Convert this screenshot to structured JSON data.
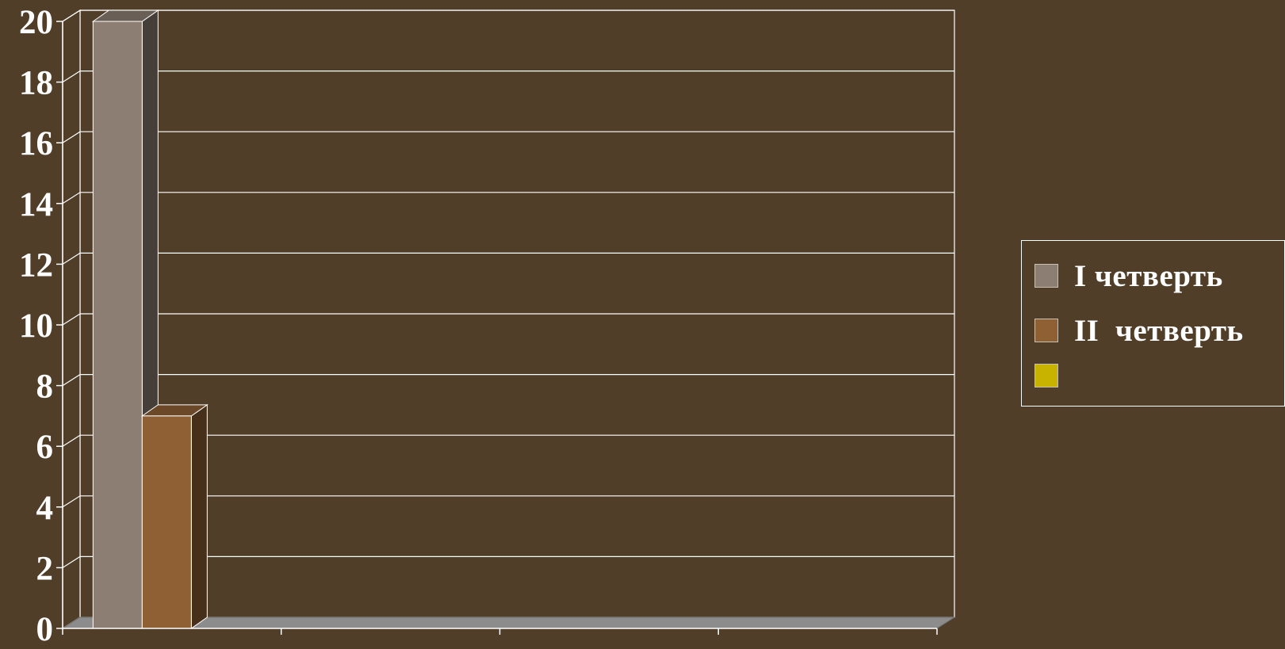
{
  "chart_data": {
    "type": "bar",
    "style": "3d-clustered-column",
    "title": "",
    "xlabel": "",
    "ylabel": "",
    "categories": [
      "",
      "",
      "",
      ""
    ],
    "series": [
      {
        "name": "I четверть",
        "values": [
          20,
          null,
          null,
          null
        ],
        "color": "#8c7e72"
      },
      {
        "name": "II  четверть",
        "values": [
          7,
          null,
          null,
          null
        ],
        "color": "#8e6034"
      },
      {
        "name": "",
        "values": [
          null,
          null,
          null,
          null
        ],
        "color": "#c8b400"
      }
    ],
    "ylim": [
      0,
      20
    ],
    "yticks": [
      0,
      2,
      4,
      6,
      8,
      10,
      12,
      14,
      16,
      18,
      20
    ],
    "grid": true,
    "legend": "right"
  },
  "colors": {
    "background": "#503e28",
    "gridline": "#ffffff",
    "floor": "#8c8c8c",
    "axis_text": "#ffffff"
  }
}
